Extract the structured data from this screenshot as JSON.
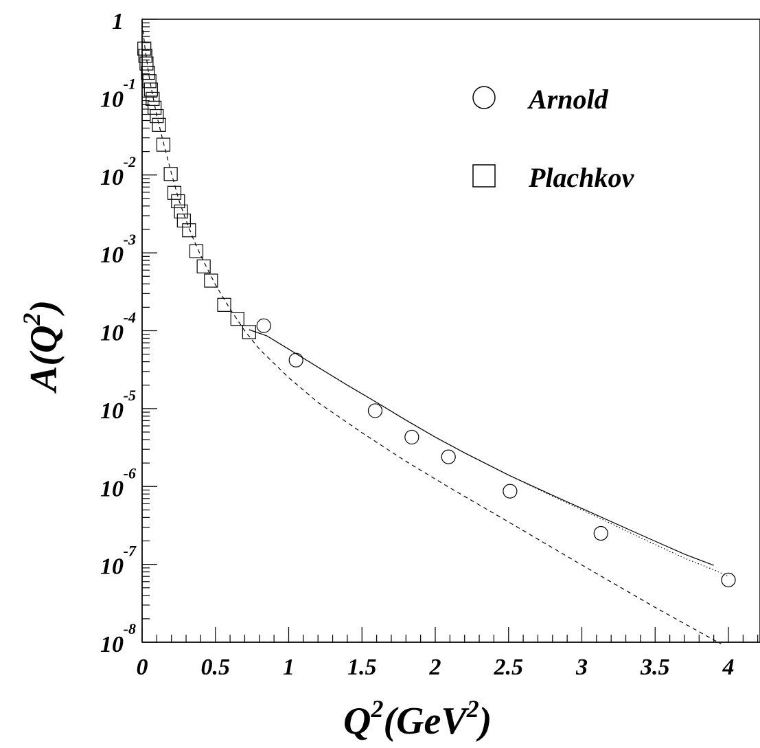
{
  "chart_data": {
    "type": "scatter",
    "xlabel_main": "Q",
    "xlabel_sup": "2",
    "xlabel_rest": "(GeV",
    "xlabel_sup2": "2",
    "xlabel_end": ")",
    "ylabel_main": "A(Q",
    "ylabel_sup": "2",
    "ylabel_end": ")",
    "xlim": [
      0,
      4.2
    ],
    "ylim_log10": [
      -8,
      0
    ],
    "y_scale": "log",
    "x_ticks": [
      "0",
      "0.5",
      "1",
      "1.5",
      "2",
      "2.5",
      "3",
      "3.5",
      "4"
    ],
    "x_tick_values": [
      0,
      0.5,
      1,
      1.5,
      2,
      2.5,
      3,
      3.5,
      4
    ],
    "y_ticks": [
      {
        "base": "1",
        "exp": ""
      },
      {
        "base": "10",
        "exp": "-1"
      },
      {
        "base": "10",
        "exp": "-2"
      },
      {
        "base": "10",
        "exp": "-3"
      },
      {
        "base": "10",
        "exp": "-4"
      },
      {
        "base": "10",
        "exp": "-5"
      },
      {
        "base": "10",
        "exp": "-6"
      },
      {
        "base": "10",
        "exp": "-7"
      },
      {
        "base": "10",
        "exp": "-8"
      }
    ],
    "legend_position": "top-right",
    "series": [
      {
        "name": "Arnold",
        "marker": "circle",
        "points": [
          [
            0.83,
            0.000116
          ],
          [
            1.05,
            4.2e-05
          ],
          [
            1.59,
            9.4e-06
          ],
          [
            1.84,
            4.3e-06
          ],
          [
            2.09,
            2.4e-06
          ],
          [
            2.51,
            8.7e-07
          ],
          [
            3.13,
            2.5e-07
          ],
          [
            4.0,
            6.3e-08
          ]
        ]
      },
      {
        "name": "Plachkov",
        "marker": "square",
        "points": [
          [
            0.015,
            0.42
          ],
          [
            0.022,
            0.34
          ],
          [
            0.03,
            0.27
          ],
          [
            0.04,
            0.205
          ],
          [
            0.05,
            0.16
          ],
          [
            0.06,
            0.125
          ],
          [
            0.072,
            0.095
          ],
          [
            0.085,
            0.073
          ],
          [
            0.1,
            0.057
          ],
          [
            0.115,
            0.044
          ],
          [
            0.145,
            0.0245
          ],
          [
            0.195,
            0.0103
          ],
          [
            0.22,
            0.0059
          ],
          [
            0.245,
            0.0046
          ],
          [
            0.265,
            0.0034
          ],
          [
            0.285,
            0.0026
          ],
          [
            0.32,
            0.00195
          ],
          [
            0.37,
            0.00105
          ],
          [
            0.42,
            0.00067
          ],
          [
            0.47,
            0.00044
          ],
          [
            0.56,
            0.000215
          ],
          [
            0.65,
            0.000142
          ],
          [
            0.73,
            9.6e-05
          ]
        ]
      }
    ],
    "curves": [
      {
        "style": "solid",
        "points": [
          [
            0.73,
            0.000103
          ],
          [
            0.85,
            8.6e-05
          ],
          [
            1.0,
            5.8e-05
          ],
          [
            1.2,
            3.4e-05
          ],
          [
            1.4,
            2e-05
          ],
          [
            1.6,
            1.2e-05
          ],
          [
            1.8,
            7.1e-06
          ],
          [
            2.0,
            4.3e-06
          ],
          [
            2.2,
            2.7e-06
          ],
          [
            2.5,
            1.4e-06
          ],
          [
            2.8,
            7.7e-07
          ],
          [
            3.1,
            4.3e-07
          ],
          [
            3.4,
            2.4e-07
          ],
          [
            3.7,
            1.35e-07
          ],
          [
            3.9,
            9.7e-08
          ]
        ]
      },
      {
        "style": "dotted",
        "points": [
          [
            0.73,
            0.000103
          ],
          [
            0.85,
            8.6e-05
          ],
          [
            1.0,
            5.8e-05
          ],
          [
            1.2,
            3.4e-05
          ],
          [
            1.4,
            2e-05
          ],
          [
            1.6,
            1.2e-05
          ],
          [
            1.8,
            7.1e-06
          ],
          [
            2.0,
            4.3e-06
          ],
          [
            2.2,
            2.7e-06
          ],
          [
            2.5,
            1.4e-06
          ],
          [
            2.8,
            7.5e-07
          ],
          [
            3.1,
            4.1e-07
          ],
          [
            3.4,
            2.2e-07
          ],
          [
            3.7,
            1.2e-07
          ],
          [
            3.9,
            8.5e-08
          ],
          [
            4.0,
            7e-08
          ]
        ]
      },
      {
        "style": "dashed",
        "points": [
          [
            0.0,
            0.9
          ],
          [
            0.02,
            0.42
          ],
          [
            0.05,
            0.17
          ],
          [
            0.1,
            0.058
          ],
          [
            0.15,
            0.024
          ],
          [
            0.2,
            0.0105
          ],
          [
            0.25,
            0.0048
          ],
          [
            0.3,
            0.0026
          ],
          [
            0.35,
            0.0015
          ],
          [
            0.4,
            0.00092
          ],
          [
            0.5,
            0.00039
          ],
          [
            0.6,
            0.00019
          ],
          [
            0.7,
            0.0001
          ],
          [
            0.8,
            5.8e-05
          ],
          [
            1.0,
            2.5e-05
          ],
          [
            1.2,
            1.2e-05
          ],
          [
            1.5,
            4.9e-06
          ],
          [
            1.8,
            2.1e-06
          ],
          [
            2.1,
            9.6e-07
          ],
          [
            2.5,
            3.5e-07
          ],
          [
            3.0,
            9.8e-08
          ],
          [
            3.5,
            2.8e-08
          ],
          [
            3.95,
            9.5e-09
          ]
        ]
      }
    ]
  }
}
